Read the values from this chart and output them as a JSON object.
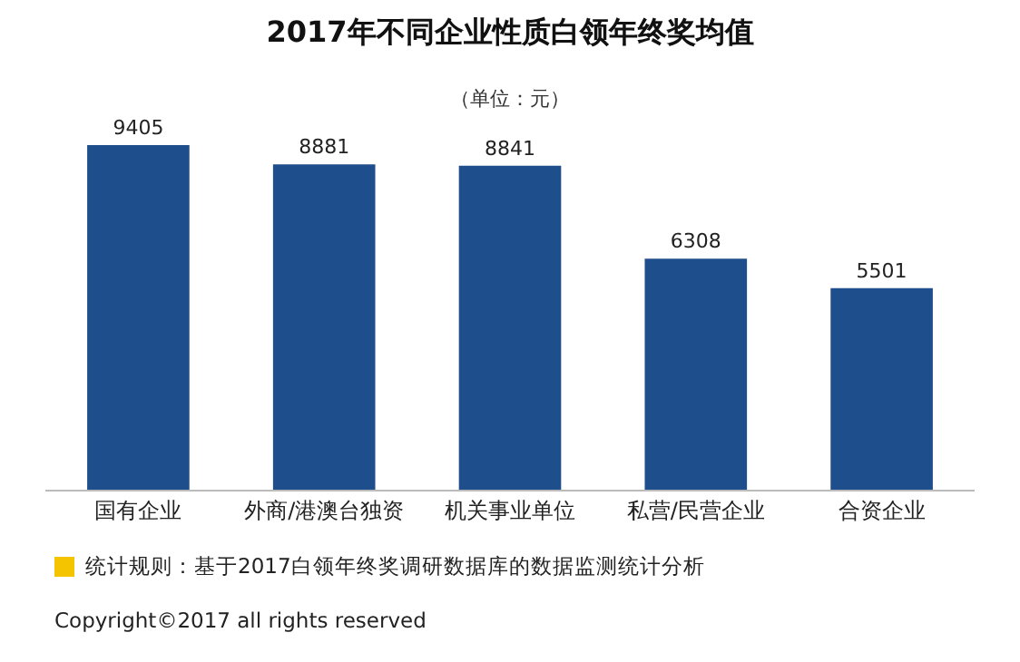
{
  "chart_data": {
    "type": "bar",
    "title": "2017年不同企业性质白领年终奖均值",
    "subtitle": "（单位：元）",
    "categories": [
      "国有企业",
      "外商/港澳台独资",
      "机关事业单位",
      "私营/民营企业",
      "合资企业"
    ],
    "values": [
      9405,
      8881,
      8841,
      6308,
      5501
    ],
    "color": "#1f4e8c",
    "data_labels": true,
    "annotations": [
      "统计规则：基于2017白领年终奖调研数据库的数据监测统计分析",
      "Copyright©2017 all rights reserved"
    ]
  }
}
